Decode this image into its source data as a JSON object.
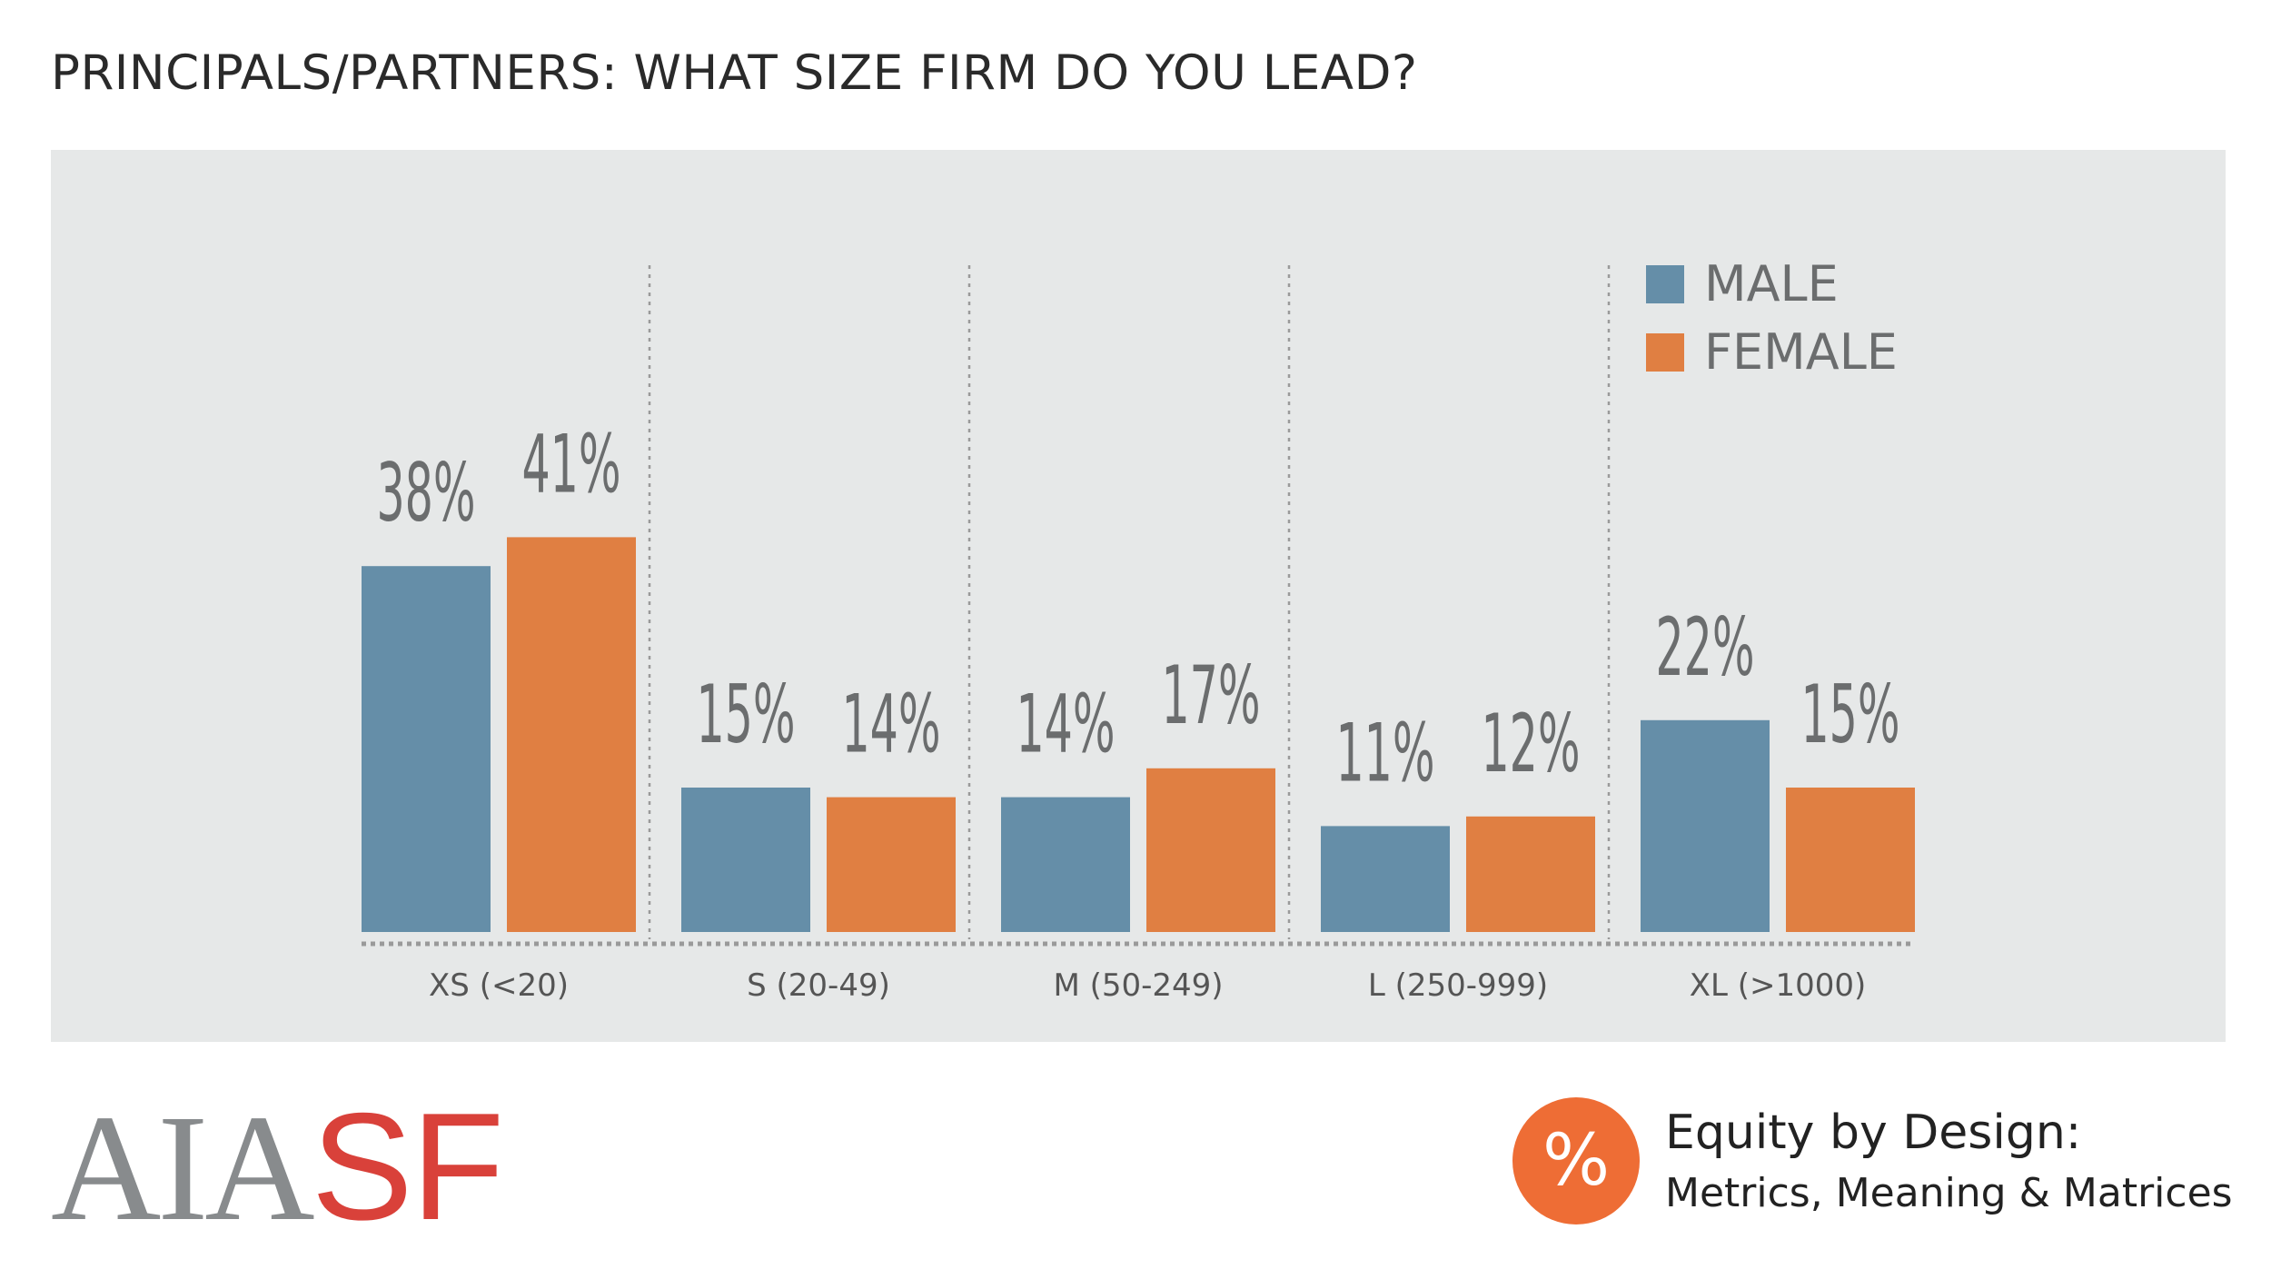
{
  "title": "PRINCIPALS/PARTNERS: WHAT SIZE FIRM DO YOU LEAD?",
  "colors": {
    "male": "#658ea8",
    "female": "#e07f42",
    "panel": "#e6e8e8",
    "label": "#6b6d6e",
    "axis": "#9a9a9a"
  },
  "chart_data": {
    "type": "bar",
    "title": "PRINCIPALS/PARTNERS: WHAT SIZE FIRM DO YOU LEAD?",
    "categories": [
      "XS (<20)",
      "S (20-49)",
      "M (50-249)",
      "L (250-999)",
      "XL (>1000)"
    ],
    "series": [
      {
        "name": "MALE",
        "values": [
          38,
          15,
          14,
          11,
          22
        ],
        "labels": [
          "38%",
          "15%",
          "14%",
          "11%",
          "22%"
        ],
        "color": "#658ea8"
      },
      {
        "name": "FEMALE",
        "values": [
          41,
          14,
          17,
          12,
          15
        ],
        "labels": [
          "41%",
          "14%",
          "17%",
          "12%",
          "15%"
        ],
        "color": "#e07f42"
      }
    ],
    "ylim": [
      0,
      70
    ],
    "legend": "top-right",
    "grid": false,
    "group_separators": "dotted"
  },
  "footer": {
    "logo_gray": "AIA",
    "logo_red": "SF",
    "badge_symbol": "%",
    "brand_title": "Equity by Design:",
    "brand_subtitle": "Metrics, Meaning & Matrices"
  }
}
